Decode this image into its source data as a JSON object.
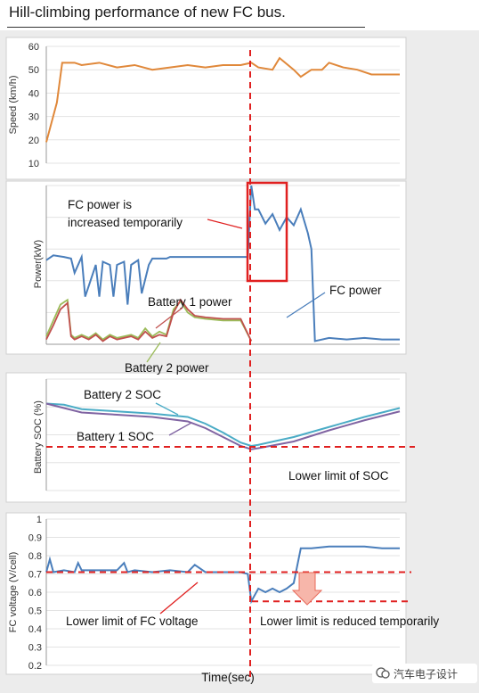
{
  "title": "Hill-climbing performance of new FC bus.",
  "watermark": "汽车电子设计",
  "chart_data": [
    {
      "type": "line",
      "ylabel": "Speed (km/h)",
      "ylim": [
        10,
        60
      ],
      "yticks": [
        "10",
        "20",
        "30",
        "40",
        "50",
        "60"
      ],
      "grid": true,
      "series": [
        {
          "color": "#e0883a",
          "x": [
            0,
            0.03,
            0.045,
            0.08,
            0.1,
            0.15,
            0.2,
            0.25,
            0.3,
            0.35,
            0.4,
            0.45,
            0.5,
            0.55,
            0.58,
            0.6,
            0.64,
            0.66,
            0.7,
            0.72,
            0.75,
            0.78,
            0.8,
            0.84,
            0.88,
            0.92,
            0.95,
            1.0
          ],
          "y": [
            19,
            36,
            53,
            53,
            52,
            53,
            51,
            52,
            50,
            51,
            52,
            51,
            52,
            52,
            53,
            51,
            50,
            55,
            50,
            47,
            50,
            50,
            53,
            51,
            50,
            48,
            48,
            48
          ]
        }
      ]
    },
    {
      "type": "line",
      "ylabel": "Power(kW)",
      "grid": true,
      "annotations": [
        "FC power is",
        "increased temporarily",
        "FC power",
        "Battery 1 power",
        "Battery 2 power"
      ],
      "series": [
        {
          "name": "FC power",
          "color": "#4a7ebb",
          "x": [
            0,
            0.02,
            0.05,
            0.07,
            0.08,
            0.1,
            0.11,
            0.14,
            0.15,
            0.16,
            0.18,
            0.19,
            0.2,
            0.22,
            0.23,
            0.24,
            0.26,
            0.27,
            0.29,
            0.3,
            0.34,
            0.35,
            0.4,
            0.45,
            0.5,
            0.55,
            0.57,
            0.58,
            0.59,
            0.6,
            0.62,
            0.64,
            0.66,
            0.68,
            0.7,
            0.72,
            0.74,
            0.75,
            0.76,
            0.8,
            0.85,
            0.9,
            0.95,
            1.0
          ],
          "y": [
            0.53,
            0.56,
            0.55,
            0.54,
            0.45,
            0.55,
            0.3,
            0.5,
            0.3,
            0.52,
            0.5,
            0.3,
            0.5,
            0.52,
            0.25,
            0.5,
            0.53,
            0.32,
            0.5,
            0.54,
            0.54,
            0.55,
            0.55,
            0.55,
            0.55,
            0.55,
            0.55,
            1.0,
            0.85,
            0.85,
            0.76,
            0.82,
            0.72,
            0.8,
            0.75,
            0.85,
            0.7,
            0.6,
            0.02,
            0.04,
            0.03,
            0.04,
            0.03,
            0.03
          ]
        },
        {
          "name": "Battery 1 power",
          "color": "#c0504d",
          "x": [
            0,
            0.02,
            0.04,
            0.06,
            0.07,
            0.08,
            0.1,
            0.12,
            0.14,
            0.16,
            0.18,
            0.2,
            0.24,
            0.26,
            0.28,
            0.3,
            0.32,
            0.34,
            0.36,
            0.38,
            0.4,
            0.42,
            0.45,
            0.5,
            0.55,
            0.58
          ],
          "y": [
            0.03,
            0.12,
            0.22,
            0.26,
            0.05,
            0.03,
            0.05,
            0.03,
            0.06,
            0.02,
            0.05,
            0.03,
            0.05,
            0.03,
            0.08,
            0.04,
            0.06,
            0.05,
            0.2,
            0.28,
            0.22,
            0.18,
            0.17,
            0.16,
            0.16,
            0.02
          ]
        },
        {
          "name": "Battery 2 power",
          "color": "#9bbb59",
          "x": [
            0,
            0.02,
            0.04,
            0.06,
            0.07,
            0.08,
            0.1,
            0.12,
            0.14,
            0.16,
            0.18,
            0.2,
            0.24,
            0.26,
            0.28,
            0.3,
            0.32,
            0.34,
            0.36,
            0.38,
            0.4,
            0.42,
            0.45,
            0.5,
            0.55,
            0.58
          ],
          "y": [
            0.05,
            0.15,
            0.25,
            0.28,
            0.06,
            0.04,
            0.06,
            0.04,
            0.07,
            0.03,
            0.06,
            0.04,
            0.06,
            0.04,
            0.1,
            0.05,
            0.08,
            0.06,
            0.22,
            0.27,
            0.2,
            0.17,
            0.16,
            0.15,
            0.15,
            0.02
          ]
        }
      ]
    },
    {
      "type": "line",
      "ylabel": "Battery SOC (%)",
      "grid": true,
      "annotations": [
        "Battery 2 SOC",
        "Battery 1 SOC",
        "Lower limit of SOC"
      ],
      "series": [
        {
          "name": "Battery 2 SOC",
          "color": "#4bacc6",
          "x": [
            0,
            0.05,
            0.1,
            0.2,
            0.3,
            0.4,
            0.45,
            0.5,
            0.55,
            0.58,
            0.6,
            0.7,
            0.8,
            0.9,
            1.0
          ],
          "y": [
            0.78,
            0.77,
            0.73,
            0.71,
            0.69,
            0.66,
            0.6,
            0.52,
            0.43,
            0.4,
            0.41,
            0.48,
            0.57,
            0.66,
            0.74
          ]
        },
        {
          "name": "Battery 1 SOC",
          "color": "#8064a2",
          "x": [
            0,
            0.05,
            0.1,
            0.2,
            0.3,
            0.4,
            0.45,
            0.5,
            0.55,
            0.58,
            0.6,
            0.7,
            0.8,
            0.9,
            1.0
          ],
          "y": [
            0.78,
            0.74,
            0.7,
            0.68,
            0.66,
            0.62,
            0.56,
            0.48,
            0.4,
            0.37,
            0.38,
            0.44,
            0.54,
            0.63,
            0.71
          ]
        }
      ]
    },
    {
      "type": "line",
      "ylabel": "FC voltage (V/cell)",
      "xlabel": "Time(sec)",
      "ylim": [
        0.2,
        1
      ],
      "yticks": [
        "0.2",
        "0.3",
        "0.4",
        "0.5",
        "0.6",
        "0.7",
        "0.8",
        "0.9",
        "1"
      ],
      "grid": true,
      "annotations": [
        "Lower limit of FC voltage",
        "Lower limit is reduced temporarily"
      ],
      "series": [
        {
          "color": "#4a7ebb",
          "x": [
            0,
            0.01,
            0.02,
            0.05,
            0.08,
            0.09,
            0.1,
            0.15,
            0.2,
            0.22,
            0.23,
            0.25,
            0.3,
            0.35,
            0.4,
            0.42,
            0.45,
            0.5,
            0.55,
            0.57,
            0.58,
            0.6,
            0.62,
            0.64,
            0.66,
            0.68,
            0.7,
            0.72,
            0.75,
            0.8,
            0.85,
            0.9,
            0.95,
            1.0
          ],
          "y": [
            0.71,
            0.78,
            0.71,
            0.72,
            0.71,
            0.76,
            0.72,
            0.72,
            0.72,
            0.76,
            0.71,
            0.72,
            0.71,
            0.72,
            0.71,
            0.75,
            0.71,
            0.71,
            0.71,
            0.7,
            0.55,
            0.62,
            0.6,
            0.62,
            0.6,
            0.62,
            0.65,
            0.84,
            0.84,
            0.85,
            0.85,
            0.85,
            0.84,
            0.84
          ]
        }
      ],
      "reference_lines": [
        0.71,
        0.55
      ]
    }
  ]
}
